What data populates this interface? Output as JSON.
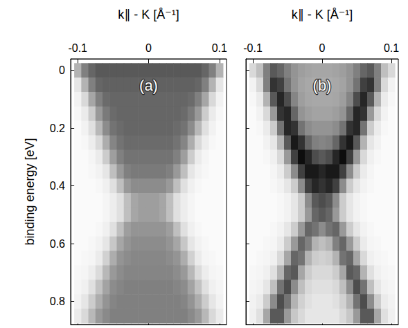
{
  "chart_data": [
    {
      "type": "heatmap",
      "title": "(a)",
      "x_label": "k∥ - K [Å⁻¹]",
      "y_label": "binding energy [eV]",
      "xlim": [
        -0.11,
        0.11
      ],
      "ylim": [
        0.88,
        -0.04
      ],
      "xticks": [
        -0.1,
        0,
        0.1
      ],
      "yticks": [
        0,
        0.2,
        0.4,
        0.6,
        0.8
      ],
      "tick_labels": true,
      "x": [
        -0.1,
        -0.09,
        -0.08,
        -0.07,
        -0.06,
        -0.05,
        -0.04,
        -0.03,
        -0.02,
        -0.01,
        0,
        0.01,
        0.02,
        0.03,
        0.04,
        0.05,
        0.06,
        0.07,
        0.08,
        0.09,
        0.1
      ],
      "y": [
        0,
        0.05,
        0.1,
        0.15,
        0.2,
        0.25,
        0.3,
        0.35,
        0.4,
        0.45,
        0.5,
        0.55,
        0.6,
        0.65,
        0.7,
        0.75,
        0.8,
        0.85
      ],
      "values": [
        [
          0.3,
          0.5,
          0.6,
          0.65,
          0.65,
          0.65,
          0.65,
          0.65,
          0.65,
          0.65,
          0.65,
          0.65,
          0.65,
          0.65,
          0.65,
          0.65,
          0.65,
          0.65,
          0.6,
          0.5,
          0.3
        ],
        [
          0.1,
          0.3,
          0.5,
          0.6,
          0.62,
          0.62,
          0.62,
          0.62,
          0.62,
          0.62,
          0.62,
          0.62,
          0.62,
          0.62,
          0.62,
          0.62,
          0.62,
          0.6,
          0.5,
          0.3,
          0.1
        ],
        [
          0.05,
          0.15,
          0.35,
          0.5,
          0.58,
          0.6,
          0.6,
          0.6,
          0.6,
          0.6,
          0.6,
          0.6,
          0.6,
          0.6,
          0.6,
          0.6,
          0.58,
          0.5,
          0.35,
          0.15,
          0.05
        ],
        [
          0.03,
          0.08,
          0.2,
          0.4,
          0.52,
          0.58,
          0.6,
          0.6,
          0.6,
          0.6,
          0.6,
          0.6,
          0.6,
          0.6,
          0.6,
          0.58,
          0.52,
          0.4,
          0.2,
          0.08,
          0.03
        ],
        [
          0.02,
          0.05,
          0.12,
          0.28,
          0.45,
          0.55,
          0.58,
          0.6,
          0.6,
          0.6,
          0.6,
          0.6,
          0.6,
          0.6,
          0.58,
          0.55,
          0.45,
          0.28,
          0.12,
          0.05,
          0.02
        ],
        [
          0.02,
          0.03,
          0.07,
          0.15,
          0.32,
          0.48,
          0.55,
          0.58,
          0.58,
          0.58,
          0.58,
          0.58,
          0.58,
          0.58,
          0.55,
          0.48,
          0.32,
          0.15,
          0.07,
          0.03,
          0.02
        ],
        [
          0.02,
          0.02,
          0.04,
          0.08,
          0.2,
          0.38,
          0.5,
          0.55,
          0.55,
          0.55,
          0.55,
          0.55,
          0.55,
          0.55,
          0.5,
          0.38,
          0.2,
          0.08,
          0.04,
          0.02,
          0.02
        ],
        [
          0.02,
          0.02,
          0.03,
          0.05,
          0.1,
          0.25,
          0.4,
          0.5,
          0.52,
          0.52,
          0.52,
          0.52,
          0.52,
          0.5,
          0.4,
          0.25,
          0.1,
          0.05,
          0.03,
          0.02,
          0.02
        ],
        [
          0.02,
          0.02,
          0.02,
          0.03,
          0.06,
          0.12,
          0.25,
          0.4,
          0.45,
          0.45,
          0.45,
          0.45,
          0.45,
          0.4,
          0.25,
          0.12,
          0.06,
          0.03,
          0.02,
          0.02,
          0.02
        ],
        [
          0.02,
          0.02,
          0.02,
          0.02,
          0.04,
          0.07,
          0.12,
          0.25,
          0.35,
          0.38,
          0.38,
          0.38,
          0.35,
          0.25,
          0.12,
          0.07,
          0.04,
          0.02,
          0.02,
          0.02,
          0.02
        ],
        [
          0.02,
          0.02,
          0.02,
          0.02,
          0.04,
          0.07,
          0.12,
          0.25,
          0.35,
          0.38,
          0.38,
          0.38,
          0.35,
          0.25,
          0.12,
          0.07,
          0.04,
          0.02,
          0.02,
          0.02,
          0.02
        ],
        [
          0.02,
          0.02,
          0.02,
          0.03,
          0.06,
          0.12,
          0.25,
          0.38,
          0.42,
          0.42,
          0.42,
          0.42,
          0.42,
          0.38,
          0.25,
          0.12,
          0.06,
          0.03,
          0.02,
          0.02,
          0.02
        ],
        [
          0.02,
          0.02,
          0.03,
          0.05,
          0.1,
          0.22,
          0.35,
          0.42,
          0.45,
          0.45,
          0.45,
          0.45,
          0.45,
          0.42,
          0.35,
          0.22,
          0.1,
          0.05,
          0.03,
          0.02,
          0.02
        ],
        [
          0.02,
          0.03,
          0.04,
          0.08,
          0.18,
          0.32,
          0.42,
          0.45,
          0.47,
          0.47,
          0.47,
          0.47,
          0.47,
          0.45,
          0.42,
          0.32,
          0.18,
          0.08,
          0.04,
          0.03,
          0.02
        ],
        [
          0.03,
          0.04,
          0.07,
          0.14,
          0.28,
          0.4,
          0.45,
          0.48,
          0.48,
          0.48,
          0.48,
          0.48,
          0.48,
          0.48,
          0.45,
          0.4,
          0.28,
          0.14,
          0.07,
          0.04,
          0.03
        ],
        [
          0.04,
          0.06,
          0.12,
          0.24,
          0.36,
          0.45,
          0.48,
          0.5,
          0.5,
          0.5,
          0.5,
          0.5,
          0.5,
          0.5,
          0.48,
          0.45,
          0.36,
          0.24,
          0.12,
          0.06,
          0.04
        ],
        [
          0.05,
          0.1,
          0.2,
          0.32,
          0.42,
          0.48,
          0.5,
          0.5,
          0.5,
          0.5,
          0.5,
          0.5,
          0.5,
          0.5,
          0.5,
          0.48,
          0.42,
          0.32,
          0.2,
          0.1,
          0.05
        ],
        [
          0.08,
          0.15,
          0.28,
          0.4,
          0.46,
          0.5,
          0.5,
          0.5,
          0.5,
          0.5,
          0.5,
          0.5,
          0.5,
          0.5,
          0.5,
          0.5,
          0.46,
          0.4,
          0.28,
          0.15,
          0.08
        ]
      ]
    },
    {
      "type": "heatmap",
      "title": "(b)",
      "x_label": "k∥ - K [Å⁻¹]",
      "xlim": [
        -0.11,
        0.11
      ],
      "ylim": [
        0.88,
        -0.04
      ],
      "xticks": [
        -0.1,
        0,
        0.1
      ],
      "yticks": [
        0,
        0.2,
        0.4,
        0.6,
        0.8
      ],
      "tick_labels": "x",
      "x": [
        -0.1,
        -0.09,
        -0.08,
        -0.07,
        -0.06,
        -0.05,
        -0.04,
        -0.03,
        -0.02,
        -0.01,
        0,
        0.01,
        0.02,
        0.03,
        0.04,
        0.05,
        0.06,
        0.07,
        0.08,
        0.09,
        0.1
      ],
      "y": [
        0,
        0.05,
        0.1,
        0.15,
        0.2,
        0.25,
        0.3,
        0.35,
        0.4,
        0.45,
        0.5,
        0.55,
        0.6,
        0.65,
        0.7,
        0.75,
        0.8,
        0.85
      ],
      "values": [
        [
          0.15,
          0.25,
          0.5,
          0.65,
          0.6,
          0.5,
          0.42,
          0.38,
          0.36,
          0.35,
          0.35,
          0.35,
          0.36,
          0.38,
          0.42,
          0.5,
          0.6,
          0.65,
          0.5,
          0.25,
          0.15
        ],
        [
          0.05,
          0.15,
          0.5,
          0.8,
          0.75,
          0.55,
          0.42,
          0.36,
          0.34,
          0.33,
          0.33,
          0.33,
          0.34,
          0.36,
          0.42,
          0.55,
          0.75,
          0.8,
          0.5,
          0.15,
          0.05
        ],
        [
          0.03,
          0.08,
          0.3,
          0.65,
          0.85,
          0.7,
          0.48,
          0.38,
          0.35,
          0.34,
          0.34,
          0.34,
          0.35,
          0.38,
          0.48,
          0.7,
          0.85,
          0.65,
          0.3,
          0.08,
          0.03
        ],
        [
          0.02,
          0.05,
          0.15,
          0.4,
          0.8,
          0.85,
          0.6,
          0.42,
          0.38,
          0.36,
          0.36,
          0.36,
          0.38,
          0.42,
          0.6,
          0.85,
          0.8,
          0.4,
          0.15,
          0.05,
          0.02
        ],
        [
          0.02,
          0.03,
          0.08,
          0.2,
          0.55,
          0.85,
          0.8,
          0.55,
          0.45,
          0.42,
          0.42,
          0.42,
          0.45,
          0.55,
          0.8,
          0.85,
          0.55,
          0.2,
          0.08,
          0.03,
          0.02
        ],
        [
          0.02,
          0.02,
          0.05,
          0.1,
          0.3,
          0.65,
          0.9,
          0.8,
          0.6,
          0.5,
          0.48,
          0.5,
          0.6,
          0.8,
          0.9,
          0.65,
          0.3,
          0.1,
          0.05,
          0.02,
          0.02
        ],
        [
          0.02,
          0.02,
          0.03,
          0.06,
          0.15,
          0.4,
          0.75,
          0.95,
          0.85,
          0.7,
          0.65,
          0.7,
          0.85,
          0.95,
          0.75,
          0.4,
          0.15,
          0.06,
          0.03,
          0.02,
          0.02
        ],
        [
          0.02,
          0.02,
          0.02,
          0.04,
          0.08,
          0.2,
          0.45,
          0.75,
          0.9,
          0.9,
          0.85,
          0.9,
          0.9,
          0.75,
          0.45,
          0.2,
          0.08,
          0.04,
          0.02,
          0.02,
          0.02
        ],
        [
          0.02,
          0.02,
          0.02,
          0.03,
          0.05,
          0.1,
          0.2,
          0.45,
          0.75,
          0.85,
          0.8,
          0.85,
          0.75,
          0.45,
          0.2,
          0.1,
          0.05,
          0.03,
          0.02,
          0.02,
          0.02
        ],
        [
          0.02,
          0.02,
          0.02,
          0.02,
          0.03,
          0.05,
          0.1,
          0.2,
          0.45,
          0.65,
          0.7,
          0.65,
          0.45,
          0.2,
          0.1,
          0.05,
          0.03,
          0.02,
          0.02,
          0.02,
          0.02
        ],
        [
          0.02,
          0.02,
          0.02,
          0.02,
          0.03,
          0.05,
          0.1,
          0.2,
          0.4,
          0.6,
          0.65,
          0.6,
          0.4,
          0.2,
          0.1,
          0.05,
          0.03,
          0.02,
          0.02,
          0.02,
          0.02
        ],
        [
          0.02,
          0.02,
          0.02,
          0.03,
          0.05,
          0.1,
          0.2,
          0.4,
          0.6,
          0.55,
          0.45,
          0.55,
          0.6,
          0.4,
          0.2,
          0.1,
          0.05,
          0.03,
          0.02,
          0.02,
          0.02
        ],
        [
          0.02,
          0.02,
          0.03,
          0.04,
          0.08,
          0.2,
          0.4,
          0.6,
          0.5,
          0.3,
          0.25,
          0.3,
          0.5,
          0.6,
          0.4,
          0.2,
          0.08,
          0.04,
          0.03,
          0.02,
          0.02
        ],
        [
          0.02,
          0.03,
          0.04,
          0.06,
          0.15,
          0.35,
          0.6,
          0.55,
          0.3,
          0.2,
          0.18,
          0.2,
          0.3,
          0.55,
          0.6,
          0.35,
          0.15,
          0.06,
          0.04,
          0.03,
          0.02
        ],
        [
          0.03,
          0.04,
          0.06,
          0.12,
          0.3,
          0.6,
          0.65,
          0.35,
          0.2,
          0.15,
          0.15,
          0.15,
          0.2,
          0.35,
          0.65,
          0.6,
          0.3,
          0.12,
          0.06,
          0.04,
          0.03
        ],
        [
          0.04,
          0.05,
          0.1,
          0.25,
          0.55,
          0.7,
          0.45,
          0.25,
          0.15,
          0.12,
          0.12,
          0.12,
          0.15,
          0.25,
          0.45,
          0.7,
          0.55,
          0.25,
          0.1,
          0.05,
          0.04
        ],
        [
          0.05,
          0.08,
          0.2,
          0.45,
          0.7,
          0.55,
          0.3,
          0.18,
          0.12,
          0.1,
          0.1,
          0.1,
          0.12,
          0.18,
          0.3,
          0.55,
          0.7,
          0.45,
          0.2,
          0.08,
          0.05
        ],
        [
          0.06,
          0.12,
          0.35,
          0.65,
          0.65,
          0.4,
          0.22,
          0.15,
          0.1,
          0.1,
          0.1,
          0.1,
          0.1,
          0.15,
          0.22,
          0.4,
          0.65,
          0.65,
          0.35,
          0.12,
          0.06
        ]
      ]
    }
  ]
}
